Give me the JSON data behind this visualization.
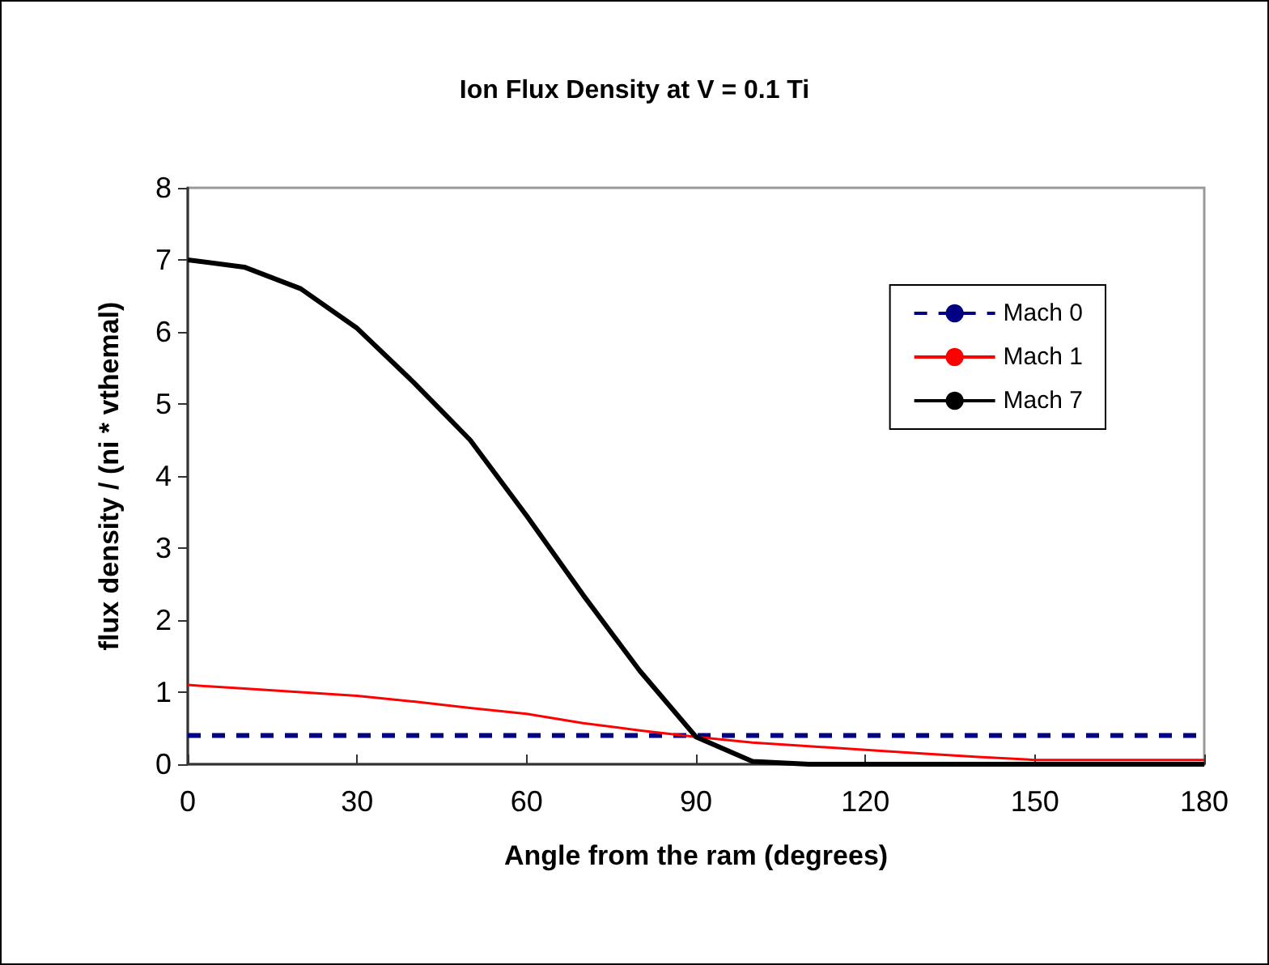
{
  "chart_data": {
    "type": "line",
    "title": "Ion Flux Density at V = 0.1 Ti",
    "xlabel": "Angle from the ram (degrees)",
    "ylabel": "flux density / (ni * vthemal)",
    "x": [
      0,
      10,
      20,
      30,
      40,
      50,
      60,
      70,
      80,
      90,
      100,
      110,
      120,
      130,
      140,
      150,
      160,
      170,
      180
    ],
    "series": [
      {
        "name": "Mach 0",
        "color": "#000080",
        "line_style": "dashed",
        "values": [
          0.4,
          0.4,
          0.4,
          0.4,
          0.4,
          0.4,
          0.4,
          0.4,
          0.4,
          0.4,
          0.4,
          0.4,
          0.4,
          0.4,
          0.4,
          0.4,
          0.4,
          0.4,
          0.4
        ]
      },
      {
        "name": "Mach 1",
        "color": "#ff0000",
        "line_style": "solid",
        "values": [
          1.1,
          1.05,
          1.0,
          0.95,
          0.87,
          0.78,
          0.7,
          0.57,
          0.47,
          0.38,
          0.3,
          0.25,
          0.2,
          0.15,
          0.1,
          0.06,
          0.06,
          0.06,
          0.06
        ]
      },
      {
        "name": "Mach 7",
        "color": "#000000",
        "line_style": "solid",
        "values": [
          7.0,
          6.9,
          6.6,
          6.05,
          5.3,
          4.5,
          3.45,
          2.35,
          1.3,
          0.38,
          0.04,
          0,
          0,
          0,
          0,
          0,
          0,
          0,
          0
        ]
      }
    ],
    "xlim": [
      0,
      180
    ],
    "xticks": [
      0,
      30,
      60,
      90,
      120,
      150,
      180
    ],
    "ylim": [
      0,
      8
    ],
    "yticks": [
      0,
      1,
      2,
      3,
      4,
      5,
      6,
      7,
      8
    ],
    "grid": false,
    "legend": "top right",
    "marker": "none"
  }
}
